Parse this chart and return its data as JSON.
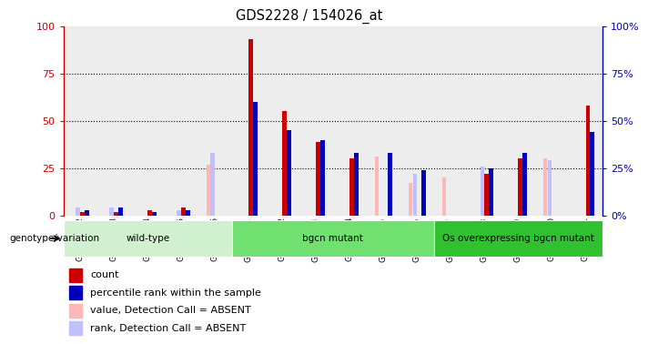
{
  "title": "GDS2228 / 154026_at",
  "samples": [
    "GSM95942",
    "GSM95943",
    "GSM95944",
    "GSM95945",
    "GSM95946",
    "GSM95931",
    "GSM95932",
    "GSM95933",
    "GSM95934",
    "GSM95935",
    "GSM95936",
    "GSM95937",
    "GSM95938",
    "GSM95939",
    "GSM95940",
    "GSM95941"
  ],
  "red_bars": [
    2,
    2,
    3,
    4,
    0,
    93,
    55,
    39,
    30,
    0,
    0,
    0,
    22,
    30,
    0,
    58
  ],
  "blue_bars": [
    3,
    4,
    2,
    3,
    0,
    60,
    45,
    40,
    33,
    33,
    24,
    0,
    25,
    33,
    0,
    44
  ],
  "pink_bars": [
    0,
    0,
    0,
    0,
    27,
    0,
    0,
    0,
    0,
    31,
    17,
    20,
    0,
    0,
    30,
    0
  ],
  "lightblue_bars": [
    4,
    4,
    0,
    3,
    33,
    0,
    0,
    0,
    0,
    0,
    22,
    0,
    26,
    0,
    29,
    0
  ],
  "groups": [
    {
      "label": "wild-type",
      "start": 0,
      "end": 5,
      "color": "#d0f0d0"
    },
    {
      "label": "bgcn mutant",
      "start": 5,
      "end": 11,
      "color": "#70e070"
    },
    {
      "label": "Os overexpressing bgcn mutant",
      "start": 11,
      "end": 16,
      "color": "#30c030"
    }
  ],
  "ylim": [
    0,
    100
  ],
  "yticks": [
    0,
    25,
    50,
    75,
    100
  ],
  "red_color": "#cc0000",
  "blue_color": "#0000bb",
  "pink_color": "#ffb8b8",
  "lightblue_color": "#c0c0ff",
  "bar_width": 0.13,
  "legend_items": [
    {
      "label": "count",
      "color": "#cc0000"
    },
    {
      "label": "percentile rank within the sample",
      "color": "#0000bb"
    },
    {
      "label": "value, Detection Call = ABSENT",
      "color": "#ffb8b8"
    },
    {
      "label": "rank, Detection Call = ABSENT",
      "color": "#c0c0ff"
    }
  ]
}
